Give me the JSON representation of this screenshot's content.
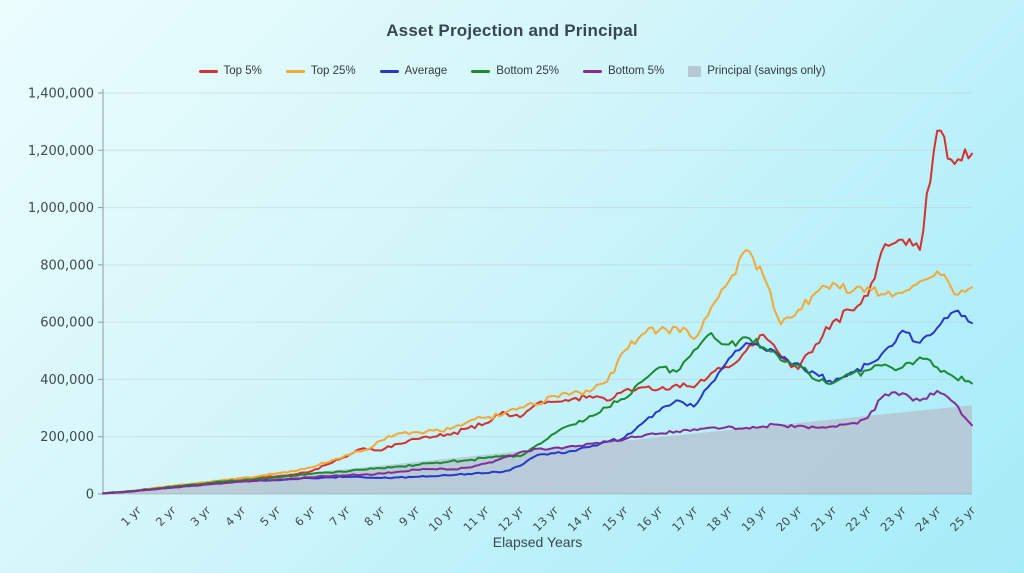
{
  "title": "Asset Projection and Principal",
  "colors": {
    "background_top": "#ecfdfe",
    "background_bottom": "#a6ecf8",
    "title_text": "#36474f",
    "axis_text": "#3f4a50",
    "grid_line": "#b9c6cd",
    "axis_line": "#8d9ba3"
  },
  "legend": [
    {
      "label": "Top 5%",
      "color": "#d23230",
      "swatch": "line"
    },
    {
      "label": "Top 25%",
      "color": "#f0a93a",
      "swatch": "line"
    },
    {
      "label": "Average",
      "color": "#2838c8",
      "swatch": "line"
    },
    {
      "label": "Bottom 25%",
      "color": "#1d8a31",
      "swatch": "line"
    },
    {
      "label": "Bottom 5%",
      "color": "#832d96",
      "swatch": "line"
    },
    {
      "label": "Principal (savings only)",
      "color": "#b6c8d4",
      "swatch": "area"
    }
  ],
  "chart_data": {
    "type": "line",
    "title": "Asset Projection and Principal",
    "xlabel": "Elapsed Years",
    "ylabel": "",
    "grid": true,
    "legend_position": "top",
    "x_start_years": 0,
    "x_step_years": 0.5,
    "x_max_years": 25,
    "ylim": [
      0,
      1400000
    ],
    "y_ticks": [
      "0",
      "200,000",
      "400,000",
      "600,000",
      "800,000",
      "1,000,000",
      "1,200,000",
      "1,400,000"
    ],
    "x_ticks": [
      "1 yr",
      "2 yr",
      "3 yr",
      "4 yr",
      "5 yr",
      "6 yr",
      "7 yr",
      "8 yr",
      "9 yr",
      "10 yr",
      "11 yr",
      "12 yr",
      "13 yr",
      "14 yr",
      "15 yr",
      "16 yr",
      "17 yr",
      "18 yr",
      "19 yr",
      "20 yr",
      "21 yr",
      "22 yr",
      "23 yr",
      "24 yr",
      "25 yr"
    ],
    "series": [
      {
        "name": "Top 5%",
        "color": "#d23230",
        "values": [
          2000,
          7000,
          13000,
          20000,
          27000,
          33000,
          40000,
          48000,
          55000,
          58000,
          62000,
          68000,
          80000,
          105000,
          130000,
          160000,
          152000,
          175000,
          192000,
          200000,
          207000,
          230000,
          246000,
          287000,
          268000,
          317000,
          322000,
          332000,
          342000,
          326000,
          362000,
          372000,
          366000,
          382000,
          372000,
          422000,
          442000,
          500000,
          556000,
          482000,
          436000,
          522000,
          602000,
          642000,
          692000,
          872000,
          888000,
          852000,
          1268000,
          1152000,
          1188000
        ]
      },
      {
        "name": "Top 25%",
        "color": "#f0a93a",
        "values": [
          2000,
          7000,
          13000,
          21000,
          28000,
          35000,
          42000,
          50000,
          56000,
          63000,
          72000,
          80000,
          93000,
          112000,
          136000,
          152000,
          186000,
          212000,
          216000,
          221000,
          227000,
          252000,
          266000,
          277000,
          302000,
          312000,
          342000,
          352000,
          357000,
          392000,
          500000,
          556000,
          572000,
          582000,
          541000,
          652000,
          742000,
          852000,
          762000,
          592000,
          642000,
          702000,
          737000,
          702000,
          722000,
          697000,
          702000,
          742000,
          777000,
          697000,
          722000
        ]
      },
      {
        "name": "Average",
        "color": "#2838c8",
        "values": [
          2000,
          6000,
          11000,
          17000,
          23000,
          29000,
          36000,
          41000,
          45000,
          47000,
          48000,
          52000,
          55000,
          58000,
          60000,
          58000,
          56000,
          58000,
          60000,
          62000,
          65000,
          70000,
          73000,
          77000,
          98000,
          136000,
          142000,
          150000,
          164000,
          182000,
          197000,
          245000,
          290000,
          327000,
          305000,
          387000,
          472000,
          527000,
          507000,
          476000,
          456000,
          421000,
          388000,
          424000,
          452000,
          502000,
          570000,
          528000,
          580000,
          637000,
          597000
        ]
      },
      {
        "name": "Bottom 25%",
        "color": "#1d8a31",
        "values": [
          2000,
          7000,
          12000,
          19000,
          25000,
          32000,
          38000,
          44000,
          48000,
          53000,
          58000,
          64000,
          70000,
          75000,
          78000,
          85000,
          90000,
          96000,
          101000,
          108000,
          115000,
          118000,
          126000,
          133000,
          132000,
          172000,
          212000,
          242000,
          272000,
          302000,
          332000,
          392000,
          442000,
          427000,
          502000,
          562000,
          522000,
          547000,
          512000,
          467000,
          452000,
          398000,
          387000,
          417000,
          432000,
          452000,
          442000,
          477000,
          442000,
          407000,
          386000
        ]
      },
      {
        "name": "Bottom 5%",
        "color": "#832d96",
        "values": [
          2000,
          6000,
          11000,
          16000,
          22000,
          27000,
          33000,
          38000,
          43000,
          47000,
          50000,
          54000,
          58000,
          62000,
          65000,
          68000,
          72000,
          78000,
          85000,
          87000,
          86000,
          92000,
          106000,
          126000,
          146000,
          158000,
          162000,
          168000,
          176000,
          183000,
          191000,
          200000,
          211000,
          219000,
          226000,
          232000,
          236000,
          231000,
          236000,
          241000,
          238000,
          232000,
          236000,
          246000,
          266000,
          348000,
          352000,
          326000,
          360000,
          318000,
          240000
        ]
      }
    ],
    "principal_area": {
      "name": "Principal (savings only)",
      "color": "#b6c8d4",
      "start_value": 0,
      "end_value": 310000
    }
  }
}
